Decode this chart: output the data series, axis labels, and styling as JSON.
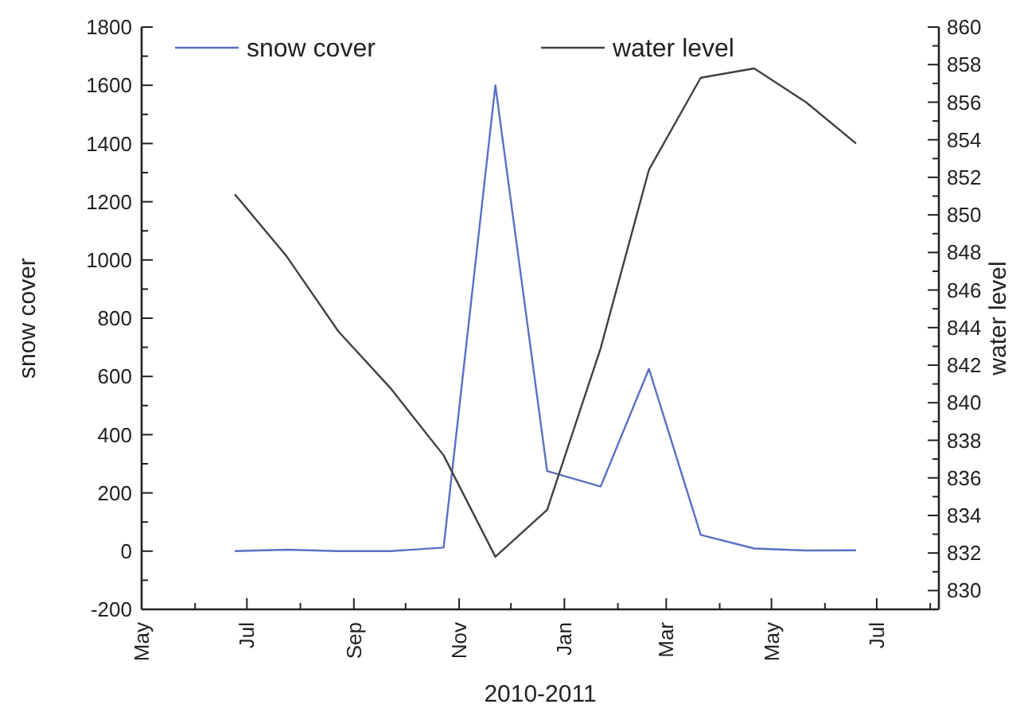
{
  "chart_data": {
    "type": "line",
    "xlabel": "2010-2011",
    "ylabel": "snow cover",
    "y2label": "water level",
    "x": [
      "2010-06-24",
      "2010-07-24",
      "2010-08-23",
      "2010-09-22",
      "2010-10-23",
      "2010-11-22",
      "2010-12-22",
      "2011-01-22",
      "2011-02-19",
      "2011-03-21",
      "2011-04-21",
      "2011-05-21",
      "2011-06-19"
    ],
    "series": [
      {
        "name": "snow cover",
        "color": "#5a6fc4",
        "values": [
          0,
          5,
          0,
          0,
          12,
          1600,
          275,
          222,
          626,
          56,
          9,
          2,
          3
        ]
      },
      {
        "name": "water level",
        "color": "#404040",
        "axis": "y2",
        "values": [
          851.1,
          847.8,
          843.8,
          840.8,
          837.2,
          831.8,
          834.3,
          842.9,
          852.4,
          857.3,
          857.8,
          856.0,
          853.8
        ]
      }
    ],
    "xlim": [
      "2010-05-01",
      "2011-08-06"
    ],
    "xticks": [
      {
        "value": "2010-05-01",
        "label": "May"
      },
      {
        "value": "2010-06-01",
        "label": null
      },
      {
        "value": "2010-07-01",
        "label": "Jul"
      },
      {
        "value": "2010-08-01",
        "label": null
      },
      {
        "value": "2010-09-01",
        "label": "Sep"
      },
      {
        "value": "2010-10-01",
        "label": null
      },
      {
        "value": "2010-11-01",
        "label": "Nov"
      },
      {
        "value": "2010-12-01",
        "label": null
      },
      {
        "value": "2011-01-01",
        "label": "Jan"
      },
      {
        "value": "2011-02-01",
        "label": null
      },
      {
        "value": "2011-03-01",
        "label": "Mar"
      },
      {
        "value": "2011-04-01",
        "label": null
      },
      {
        "value": "2011-05-01",
        "label": "May"
      },
      {
        "value": "2011-06-01",
        "label": null
      },
      {
        "value": "2011-07-01",
        "label": "Jul"
      },
      {
        "value": "2011-08-01",
        "label": null
      }
    ],
    "ylim": [
      -200,
      1800
    ],
    "yticks": [
      -200,
      {
        "value": -100,
        "label": null
      },
      0,
      {
        "value": 100,
        "label": null
      },
      200,
      {
        "value": 300,
        "label": null
      },
      400,
      {
        "value": 500,
        "label": null
      },
      600,
      {
        "value": 700,
        "label": null
      },
      800,
      {
        "value": 900,
        "label": null
      },
      1000,
      {
        "value": 1100,
        "label": null
      },
      1200,
      {
        "value": 1300,
        "label": null
      },
      1400,
      {
        "value": 1500,
        "label": null
      },
      1600,
      {
        "value": 1700,
        "label": null
      },
      1800
    ],
    "y2lim": [
      829,
      860
    ],
    "y2ticks": [
      {
        "value": 829,
        "label": null
      },
      830,
      {
        "value": 831,
        "label": null
      },
      832,
      {
        "value": 833,
        "label": null
      },
      834,
      {
        "value": 835,
        "label": null
      },
      836,
      {
        "value": 837,
        "label": null
      },
      838,
      {
        "value": 839,
        "label": null
      },
      840,
      {
        "value": 841,
        "label": null
      },
      842,
      {
        "value": 843,
        "label": null
      },
      844,
      {
        "value": 845,
        "label": null
      },
      846,
      {
        "value": 847,
        "label": null
      },
      848,
      {
        "value": 849,
        "label": null
      },
      850,
      {
        "value": 851,
        "label": null
      },
      852,
      {
        "value": 853,
        "label": null
      },
      854,
      {
        "value": 855,
        "label": null
      },
      856,
      {
        "value": 857,
        "label": null
      },
      858,
      {
        "value": 859,
        "label": null
      },
      860
    ],
    "legend": "top",
    "grid": false,
    "marker": "none",
    "line_style": "solid"
  }
}
